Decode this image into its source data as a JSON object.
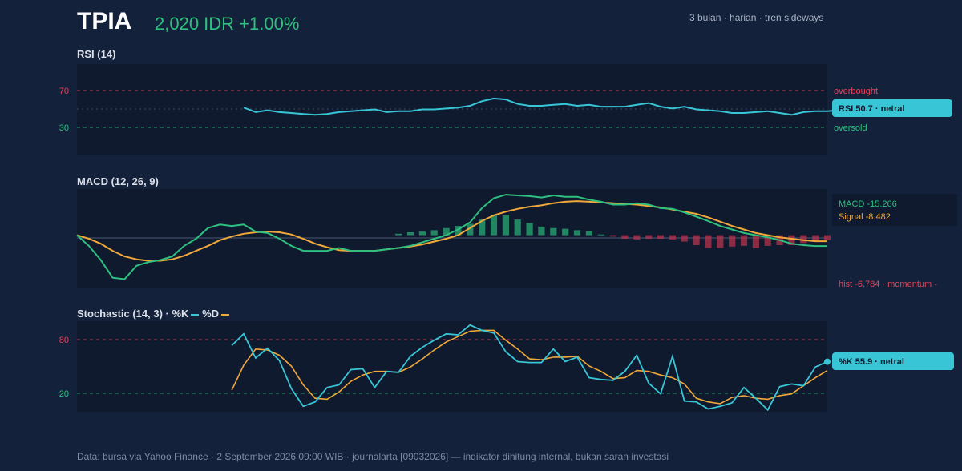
{
  "header": {
    "ticker": "TPIA",
    "price": "2,020 IDR +1.00%",
    "subtitle": "3 bulan · harian · tren sideways"
  },
  "colors": {
    "background": "#14213a",
    "panel": "#0f1a2e",
    "up": "#2ec07f",
    "down": "#e0455f",
    "cyan": "#38c6d6",
    "orange": "#f0a83a"
  },
  "rsi": {
    "title": "RSI (14)",
    "overbought_label": "overbought",
    "oversold_label": "oversold",
    "pill": "RSI 50.7 · netral"
  },
  "macd": {
    "title": "MACD (12, 26, 9)",
    "macd_label": "MACD -15.266",
    "signal_label": "Signal -8.482",
    "hist_label": "hist -6.784 · momentum -"
  },
  "stoch": {
    "title": "Stochastic (14, 3) · %K",
    "d_label": "%D",
    "pill": "%K 55.9 · netral"
  },
  "footer": "Data: bursa via Yahoo Finance · 2 September 2026 09:00 WIB · journalarta [09032026] — indikator dihitung internal, bukan saran investasi",
  "chart_data": [
    {
      "type": "line",
      "title": "RSI (14)",
      "ylim": [
        0,
        100
      ],
      "yticks": [
        30,
        70
      ],
      "overbought": 70,
      "oversold": 30,
      "x_count": 64,
      "series": [
        {
          "name": "RSI",
          "x_start": 14,
          "values": [
            52,
            47,
            49,
            47,
            46,
            45,
            44,
            45,
            47,
            48,
            49,
            50,
            47,
            48,
            48,
            50,
            50,
            51,
            52,
            54,
            59,
            62,
            61,
            56,
            54,
            54,
            55,
            56,
            54,
            55,
            53,
            53,
            53,
            55,
            57,
            53,
            51,
            53,
            50,
            49,
            48,
            46,
            46,
            47,
            48,
            46,
            44,
            47,
            48,
            48,
            49,
            50.7
          ]
        }
      ]
    },
    {
      "type": "line",
      "title": "MACD (12, 26, 9)",
      "ylim": [
        -75,
        65
      ],
      "x_count": 64,
      "series": [
        {
          "name": "MACD",
          "values": [
            0,
            -15,
            -35,
            -60,
            -62,
            -43,
            -38,
            -35,
            -30,
            -15,
            -5,
            10,
            15,
            13,
            15,
            5,
            3,
            -5,
            -15,
            -22,
            -22,
            -22,
            -18,
            -22,
            -22,
            -22,
            -20,
            -18,
            -15,
            -10,
            -5,
            0,
            8,
            18,
            38,
            52,
            57,
            56,
            55,
            53,
            56,
            54,
            54,
            50,
            47,
            43,
            43,
            45,
            43,
            38,
            37,
            32,
            26,
            20,
            13,
            8,
            3,
            0,
            -3,
            -7,
            -12,
            -14,
            -15.266,
            -15.266
          ]
        },
        {
          "name": "Signal",
          "values": [
            0,
            -5,
            -12,
            -22,
            -30,
            -34,
            -36,
            -36,
            -34,
            -29,
            -22,
            -15,
            -7,
            -2,
            2,
            4,
            5,
            4,
            1,
            -5,
            -12,
            -17,
            -21,
            -22,
            -22,
            -22,
            -20,
            -18,
            -16,
            -13,
            -9,
            -5,
            0,
            10,
            20,
            28,
            33,
            37,
            40,
            42,
            45,
            47,
            48,
            47,
            46,
            45,
            44,
            43,
            41,
            39,
            36,
            33,
            30,
            25,
            19,
            13,
            8,
            3,
            0,
            -3,
            -5,
            -7,
            -8.482,
            -8.482
          ]
        },
        {
          "name": "hist",
          "values": [
            0,
            0,
            0,
            0,
            0,
            0,
            0,
            0,
            0,
            0,
            0,
            0,
            0,
            0,
            0,
            0,
            0,
            0,
            0,
            0,
            0,
            0,
            0,
            0,
            0,
            0,
            0,
            2,
            4,
            5,
            7,
            10,
            13,
            16,
            22,
            28,
            28,
            22,
            17,
            12,
            10,
            9,
            7,
            6,
            1,
            -2,
            -5,
            -6,
            -5,
            -5,
            -6,
            -9,
            -14,
            -18,
            -18,
            -16,
            -15,
            -18,
            -15,
            -14,
            -14,
            -11,
            -9,
            -6.784
          ]
        }
      ]
    },
    {
      "type": "line",
      "title": "Stochastic (14, 3)",
      "ylim": [
        0,
        100
      ],
      "yticks": [
        20,
        80
      ],
      "x_count": 64,
      "series": [
        {
          "name": "%K",
          "x_start": 13,
          "values": [
            74,
            87,
            60,
            71,
            57,
            26,
            6,
            11,
            27,
            30,
            47,
            48,
            27,
            45,
            44,
            62,
            72,
            80,
            87,
            86,
            97,
            91,
            88,
            67,
            56,
            55,
            55,
            70,
            56,
            61,
            38,
            36,
            35,
            45,
            63,
            32,
            20,
            62,
            12,
            11,
            3,
            6,
            10,
            27,
            15,
            2,
            28,
            31,
            29,
            50,
            55.9
          ]
        },
        {
          "name": "%D",
          "x_start": 13,
          "values": [
            24,
            52,
            70,
            69,
            63,
            51,
            30,
            15,
            14,
            22,
            34,
            41,
            45,
            45,
            44,
            50,
            59,
            69,
            78,
            84,
            90,
            91,
            91,
            80,
            70,
            59,
            58,
            61,
            61,
            62,
            51,
            45,
            37,
            38,
            46,
            45,
            41,
            38,
            31,
            15,
            11,
            9,
            16,
            18,
            15,
            14,
            18,
            20,
            29,
            38,
            46
          ]
        }
      ]
    }
  ]
}
